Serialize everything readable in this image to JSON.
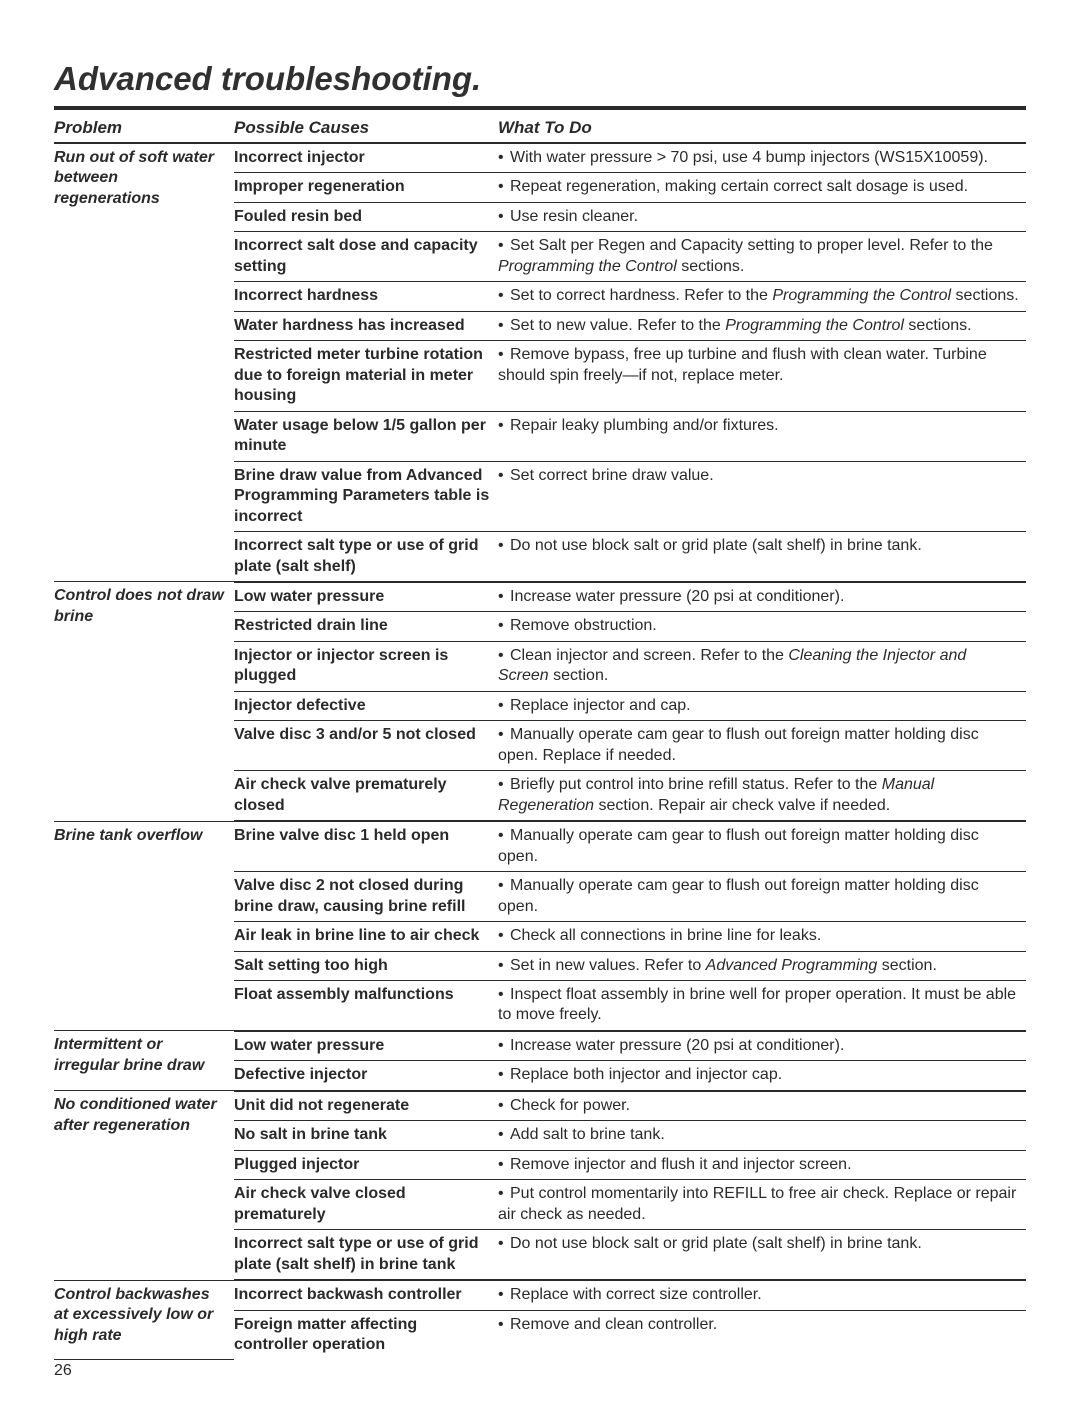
{
  "page": {
    "title": "Advanced troubleshooting.",
    "pageNumber": "26",
    "headers": {
      "problem": "Problem",
      "causes": "Possible Causes",
      "action": "What To Do"
    }
  },
  "groups": [
    {
      "problem": "Run out of soft water between regenerations",
      "rows": [
        {
          "cause": "Incorrect injector",
          "action": "With water pressure > 70 psi, use 4 bump injectors (WS15X10059)."
        },
        {
          "cause": "Improper regeneration",
          "action": "Repeat regeneration, making certain correct salt dosage is used."
        },
        {
          "cause": "Fouled resin bed",
          "action": "Use resin cleaner."
        },
        {
          "cause": "Incorrect salt dose and capacity setting",
          "action": "Set Salt per Regen and Capacity setting to proper level. Refer to the <em>Programming the Control</em> sections."
        },
        {
          "cause": "Incorrect hardness",
          "action": "Set to correct hardness. Refer to the <em>Programming the Control</em> sections."
        },
        {
          "cause": "Water hardness has increased",
          "action": "Set to new value. Refer to the <em>Programming the Control</em> sections."
        },
        {
          "cause": "Restricted meter turbine rotation due to foreign material in meter housing",
          "action": "Remove bypass, free up turbine and flush with clean water. Turbine should spin freely—if not, replace meter."
        },
        {
          "cause": "Water usage below 1/5 gallon per minute",
          "action": "Repair leaky plumbing and/or fixtures."
        },
        {
          "cause": "Brine draw value from Advanced Programming Parameters table is incorrect",
          "action": "Set correct brine draw value."
        },
        {
          "cause": "Incorrect salt type or use of grid plate (salt shelf)",
          "action": "Do not use block salt or grid plate (salt shelf) in brine tank."
        }
      ]
    },
    {
      "problem": "Control does not draw brine",
      "rows": [
        {
          "cause": "Low water pressure",
          "action": "Increase water pressure (20 psi at conditioner)."
        },
        {
          "cause": "Restricted drain line",
          "action": "Remove obstruction."
        },
        {
          "cause": "Injector or injector screen is plugged",
          "action": "Clean injector and screen. Refer to the <em>Cleaning the Injector and Screen</em> section."
        },
        {
          "cause": "Injector defective",
          "action": "Replace injector and cap."
        },
        {
          "cause": "Valve disc 3 and/or 5 not closed",
          "action": "Manually operate cam gear to flush out foreign matter holding disc open. Replace if needed."
        },
        {
          "cause": "Air check valve prematurely closed",
          "action": "Briefly put control into brine refill status. Refer to the <em>Manual Regeneration</em> section. Repair air check valve if needed."
        }
      ]
    },
    {
      "problem": "Brine tank overflow",
      "rows": [
        {
          "cause": "Brine valve disc 1 held open",
          "action": "Manually operate cam gear to flush out foreign matter holding disc open."
        },
        {
          "cause": "Valve disc 2 not closed during brine draw, causing brine refill",
          "action": "Manually operate cam gear to flush out foreign matter holding disc open."
        },
        {
          "cause": "Air leak in brine line to air check",
          "action": "Check all connections in brine line for leaks."
        },
        {
          "cause": "Salt setting too high",
          "action": "Set in new values. Refer to <em>Advanced Programming</em> section."
        },
        {
          "cause": "Float assembly malfunctions",
          "action": "Inspect float assembly in brine well for proper operation. It must be able to move freely."
        }
      ]
    },
    {
      "problem": "Intermittent or irregular brine draw",
      "rows": [
        {
          "cause": "Low water pressure",
          "action": "Increase water pressure (20 psi at conditioner)."
        },
        {
          "cause": "Defective injector",
          "action": "Replace both injector and injector cap."
        }
      ]
    },
    {
      "problem": "No conditioned water after regeneration",
      "rows": [
        {
          "cause": "Unit did not regenerate",
          "action": "Check for power."
        },
        {
          "cause": "No salt in brine tank",
          "action": "Add salt to brine tank."
        },
        {
          "cause": "Plugged injector",
          "action": "Remove injector and flush it and injector screen."
        },
        {
          "cause": "Air check valve closed prematurely",
          "action": "Put control momentarily into REFILL to free air check. Replace or repair air check as needed."
        },
        {
          "cause": "Incorrect salt type or use of grid plate (salt shelf) in brine tank",
          "action": "Do not use block salt or grid plate (salt shelf) in brine tank."
        }
      ]
    },
    {
      "problem": "Control backwashes at excessively low or high rate",
      "rows": [
        {
          "cause": "Incorrect backwash controller",
          "action": "Replace with correct size controller."
        },
        {
          "cause": "Foreign matter affecting controller operation",
          "action": "Remove and clean controller."
        }
      ],
      "noBottomRule": true
    }
  ]
}
